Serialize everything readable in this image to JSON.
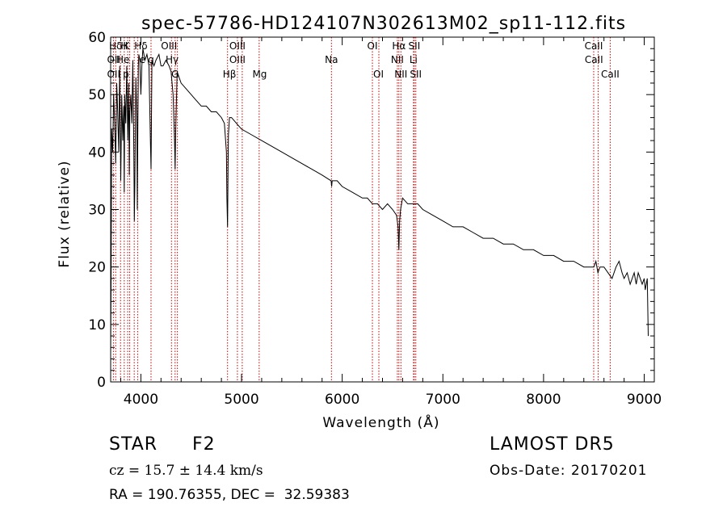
{
  "chart_data": {
    "type": "line",
    "title": "spec-57786-HD124107N302613M02_sp11-112.fits",
    "xlabel": "Wavelength (Å)",
    "ylabel": "Flux (relative)",
    "xlim": [
      3700,
      9100
    ],
    "ylim": [
      0,
      60
    ],
    "xticks": [
      "4000",
      "5000",
      "6000",
      "7000",
      "8000",
      "9000"
    ],
    "yticks": [
      "0",
      "10",
      "20",
      "30",
      "40",
      "50",
      "60"
    ],
    "grid": false,
    "series": [
      {
        "x": [
          3700,
          3705,
          3710,
          3720,
          3730,
          3740,
          3750,
          3760,
          3770,
          3780,
          3790,
          3800,
          3810,
          3820,
          3830,
          3835,
          3840,
          3850,
          3860,
          3870,
          3880,
          3885,
          3890,
          3900,
          3910,
          3920,
          3930,
          3935,
          3940,
          3950,
          3960,
          3965,
          3970,
          3975,
          3980,
          3990,
          4000,
          4010,
          4020,
          4040,
          4060,
          4080,
          4095,
          4101,
          4110,
          4130,
          4150,
          4180,
          4200,
          4220,
          4250,
          4280,
          4300,
          4320,
          4335,
          4340,
          4345,
          4360,
          4380,
          4400,
          4450,
          4500,
          4550,
          4600,
          4650,
          4700,
          4750,
          4800,
          4830,
          4850,
          4855,
          4861,
          4866,
          4870,
          4880,
          4900,
          4950,
          5000,
          5100,
          5200,
          5300,
          5400,
          5500,
          5600,
          5700,
          5800,
          5890,
          5895,
          5900,
          5950,
          6000,
          6100,
          6200,
          6250,
          6300,
          6350,
          6400,
          6450,
          6500,
          6540,
          6555,
          6563,
          6570,
          6580,
          6600,
          6650,
          6700,
          6750,
          6800,
          6900,
          7000,
          7100,
          7200,
          7300,
          7400,
          7500,
          7600,
          7700,
          7800,
          7900,
          8000,
          8100,
          8200,
          8300,
          8400,
          8480,
          8500,
          8520,
          8540,
          8560,
          8600,
          8640,
          8680,
          8720,
          8750,
          8780,
          8800,
          8830,
          8860,
          8880,
          8900,
          8920,
          8940,
          8960,
          8980,
          9000,
          9010,
          9020,
          9030,
          9040
        ],
        "y": [
          5,
          20,
          44,
          40,
          50,
          45,
          38,
          52,
          47,
          40,
          55,
          35,
          50,
          42,
          48,
          33,
          50,
          45,
          55,
          42,
          52,
          36,
          47,
          50,
          45,
          56,
          40,
          28,
          34,
          53,
          46,
          30,
          45,
          55,
          57,
          56,
          50,
          55,
          58,
          56,
          57,
          55,
          42,
          37,
          56,
          55,
          56,
          57,
          55,
          55,
          56,
          55,
          54,
          50,
          42,
          37,
          43,
          54,
          53,
          52,
          51,
          50,
          49,
          48,
          48,
          47,
          47,
          46,
          45,
          40,
          32,
          27,
          37,
          43,
          46,
          46,
          45,
          44,
          43,
          42,
          41,
          40,
          39,
          38,
          37,
          36,
          35,
          34,
          35,
          35,
          34,
          33,
          32,
          32,
          31,
          31,
          30,
          31,
          30,
          29,
          27,
          23,
          28,
          30,
          32,
          31,
          31,
          31,
          30,
          29,
          28,
          27,
          27,
          26,
          25,
          25,
          24,
          24,
          23,
          23,
          22,
          22,
          21,
          21,
          20,
          20,
          20,
          21,
          19,
          20,
          20,
          19,
          18,
          20,
          21,
          19,
          18,
          19,
          17,
          18,
          19,
          17,
          19,
          18,
          17,
          18,
          16,
          17,
          18,
          8
        ]
      }
    ],
    "line_labels": [
      {
        "x": 3750,
        "row": 0,
        "text": "Hδ"
      },
      {
        "x": 3730,
        "row": 1,
        "text": "OII"
      },
      {
        "x": 3730,
        "row": 2,
        "text": "OII"
      },
      {
        "x": 3822,
        "row": 1,
        "text": "He"
      },
      {
        "x": 3852,
        "row": 2,
        "text": "p"
      },
      {
        "x": 3855,
        "row": 0,
        "text": "K"
      },
      {
        "x": 3835,
        "row": 0,
        "text": "H"
      },
      {
        "x": 4000,
        "row": 0,
        "text": "Hδ"
      },
      {
        "x": 4015,
        "row": 1,
        "text": "e"
      },
      {
        "x": 4101,
        "row": 1,
        "text": "g"
      },
      {
        "x": 4280,
        "row": 0,
        "text": "OIII"
      },
      {
        "x": 4310,
        "row": 1,
        "text": "Hγ"
      },
      {
        "x": 4340,
        "row": 2,
        "text": "G"
      },
      {
        "x": 4880,
        "row": 2,
        "text": "Hβ"
      },
      {
        "x": 4959,
        "row": 0,
        "text": "OIII"
      },
      {
        "x": 4959,
        "row": 1,
        "text": "OIII"
      },
      {
        "x": 5180,
        "row": 2,
        "text": "Mg"
      },
      {
        "x": 5893,
        "row": 1,
        "text": "Na"
      },
      {
        "x": 6300,
        "row": 0,
        "text": "OI"
      },
      {
        "x": 6360,
        "row": 2,
        "text": "OI"
      },
      {
        "x": 6563,
        "row": 0,
        "text": "Hα"
      },
      {
        "x": 6548,
        "row": 1,
        "text": "NII"
      },
      {
        "x": 6583,
        "row": 2,
        "text": "NII"
      },
      {
        "x": 6716,
        "row": 0,
        "text": "SII"
      },
      {
        "x": 6708,
        "row": 1,
        "text": "Li"
      },
      {
        "x": 6731,
        "row": 2,
        "text": "SII"
      },
      {
        "x": 8498,
        "row": 0,
        "text": "CaII"
      },
      {
        "x": 8500,
        "row": 1,
        "text": "CaII"
      },
      {
        "x": 8662,
        "row": 2,
        "text": "CaII"
      }
    ],
    "line_markers": [
      3727,
      3750,
      3798,
      3835,
      3869,
      3889,
      3934,
      3968,
      4101,
      4304,
      4340,
      4363,
      4861,
      4959,
      5007,
      5175,
      5893,
      6300,
      6364,
      6548,
      6563,
      6583,
      6708,
      6716,
      6731,
      8498,
      8542,
      8662
    ],
    "marker_color": "#cc0000"
  },
  "info": {
    "class": "STAR",
    "subclass": "F2",
    "survey": "LAMOST DR5",
    "cz": "cz = 15.7 ± 14.4 km/s",
    "obs_date": "Obs-Date: 20170201",
    "coords": "RA = 190.76355, DEC =  32.59383"
  }
}
